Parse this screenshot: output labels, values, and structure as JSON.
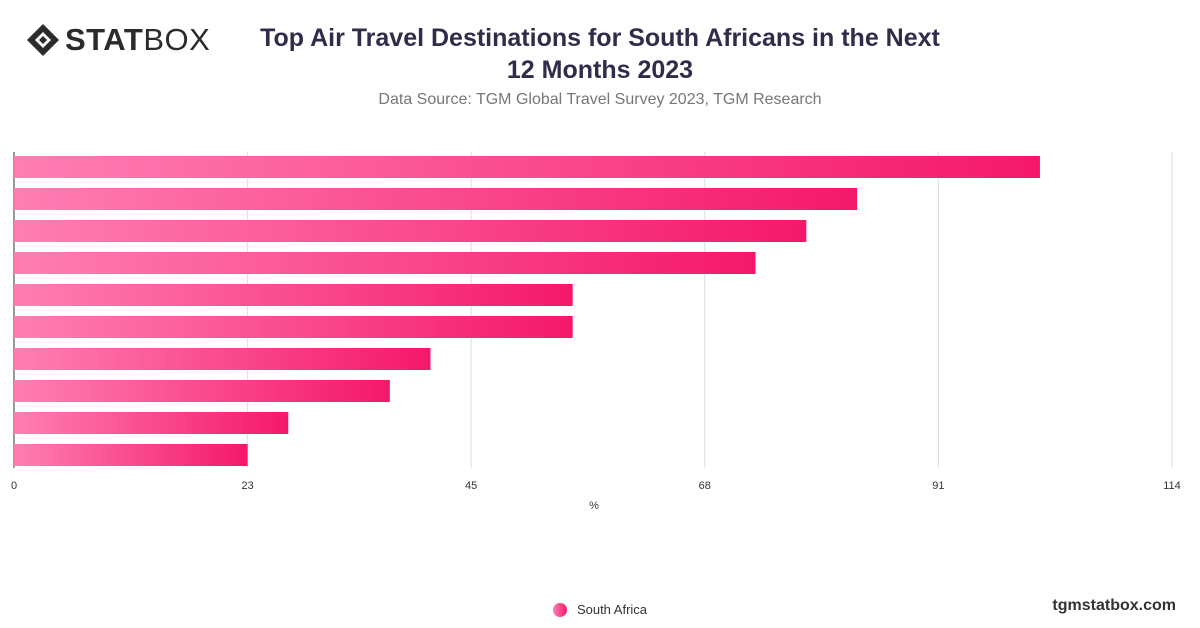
{
  "header": {
    "logo_bold": "STAT",
    "logo_thin": "BOX",
    "title": "Top Air Travel Destinations for South Africans in the Next 12 Months 2023",
    "subtitle": "Data Source: TGM Global Travel Survey 2023, TGM Research"
  },
  "colors": {
    "bar_start": "#ff7eb3",
    "bar_end": "#f5186a",
    "grid": "#dddddd",
    "axis": "#333333"
  },
  "chart_data": {
    "type": "bar",
    "orientation": "horizontal",
    "title": "Top Air Travel Destinations for South Africans in the Next 12 Months 2023",
    "xlabel": "%",
    "ylabel": "",
    "categories": [
      "",
      "",
      "",
      "",
      "",
      "",
      "",
      "",
      "",
      ""
    ],
    "series": [
      {
        "name": "South Africa",
        "values": [
          101,
          83,
          78,
          73,
          55,
          55,
          41,
          37,
          27,
          23
        ]
      }
    ],
    "xlim": [
      0,
      114
    ],
    "xticks": [
      0,
      23,
      45,
      68,
      91,
      114
    ],
    "grid": true,
    "legend_position": "bottom-center"
  },
  "footer": {
    "legend_label": "South Africa",
    "watermark": "tgmstatbox.com"
  }
}
